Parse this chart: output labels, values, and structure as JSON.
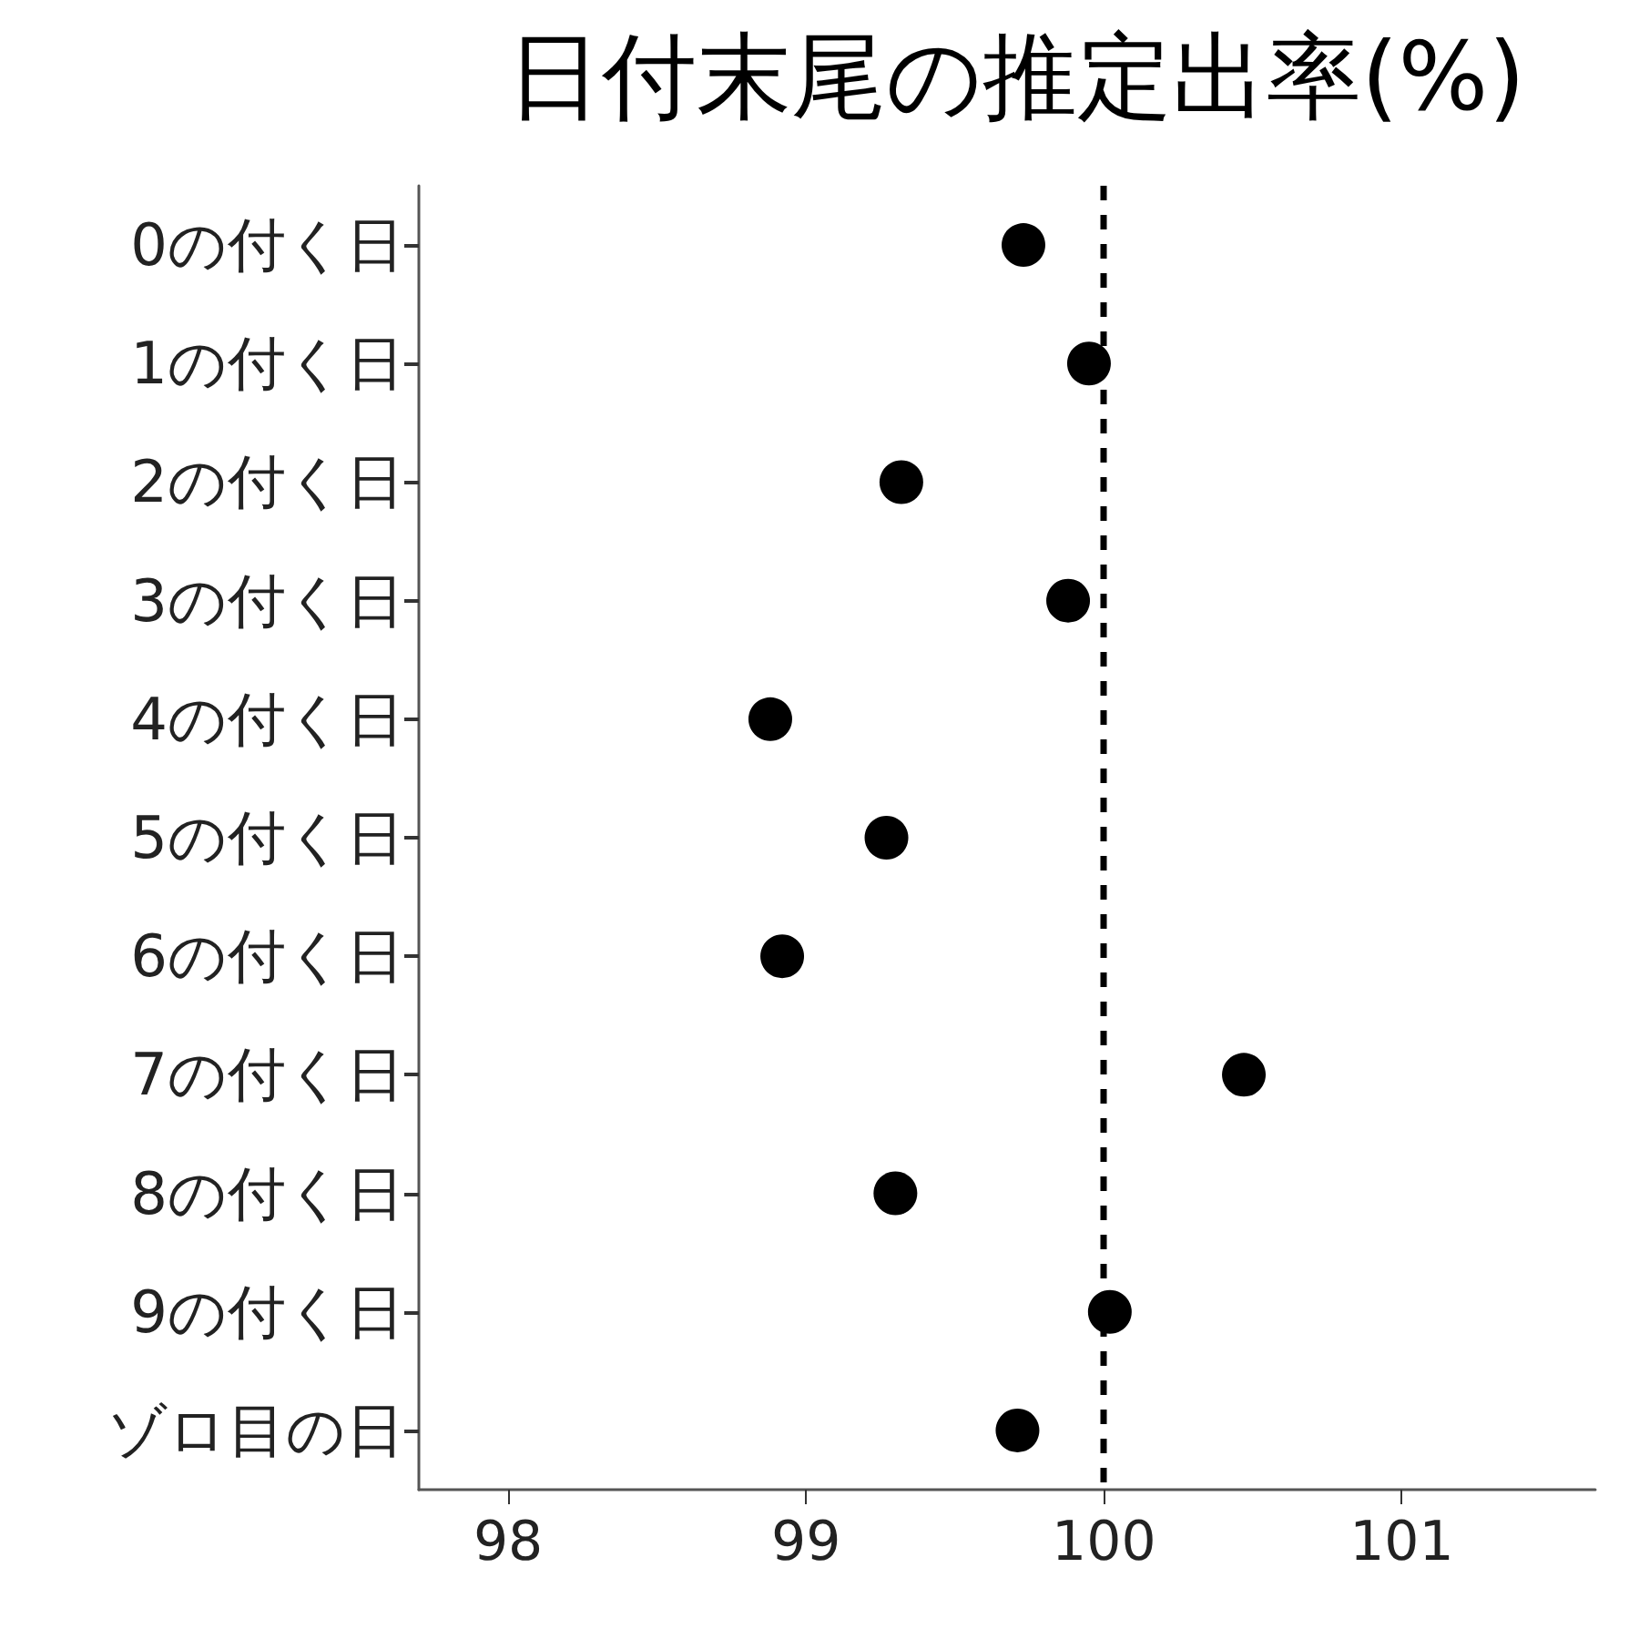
{
  "chart_data": {
    "type": "scatter",
    "title": "日付末尾の推定出率(%)",
    "orientation": "horizontal",
    "categories": [
      "0の付く日",
      "1の付く日",
      "2の付く日",
      "3の付く日",
      "4の付く日",
      "5の付く日",
      "6の付く日",
      "7の付く日",
      "8の付く日",
      "9の付く日",
      "ゾロ目の日"
    ],
    "values": [
      99.73,
      99.95,
      99.32,
      99.88,
      98.88,
      99.27,
      98.92,
      100.47,
      99.3,
      100.02,
      99.71
    ],
    "color": "#000000",
    "marker": "circle",
    "xlim": [
      97.7,
      101.65
    ],
    "xticks": [
      98,
      99,
      100,
      101
    ],
    "ref_lines": [
      {
        "axis": "x",
        "value": 100,
        "color": "#000000",
        "line_style": "dashed"
      }
    ],
    "grid": false
  }
}
